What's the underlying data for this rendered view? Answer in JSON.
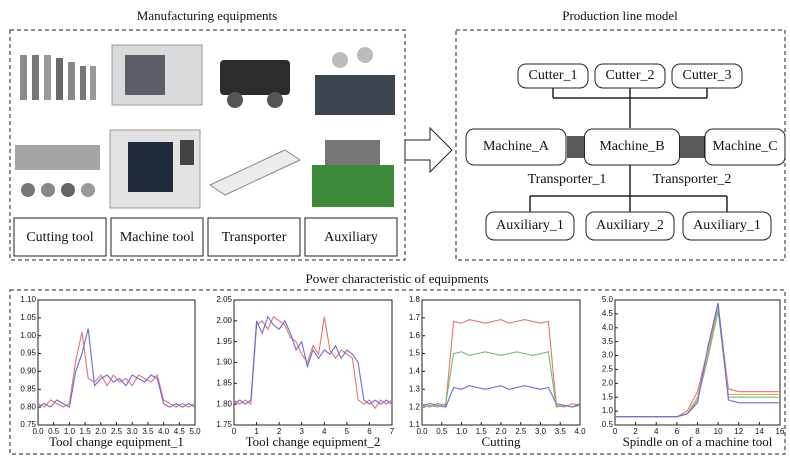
{
  "equipment_panel": {
    "title": "Manufacturing equipments",
    "labels": [
      "Cutting tool",
      "Machine tool",
      "Transporter",
      "Auxiliary"
    ]
  },
  "model_panel": {
    "title": "Production line model",
    "cutters": [
      "Cutter_1",
      "Cutter_2",
      "Cutter_3"
    ],
    "machines": [
      "Machine_A",
      "Machine_B",
      "Machine_C"
    ],
    "transporters": [
      "Transporter_1",
      "Transporter_2"
    ],
    "auxiliaries": [
      "Auxiliary_1",
      "Auxiliary_2",
      "Auxiliary_1"
    ]
  },
  "power_panel": {
    "title": "Power characteristic of equipments"
  },
  "chart_data": [
    {
      "type": "line",
      "title": "Tool change equipment_1",
      "x": [
        0,
        0.2,
        0.4,
        0.6,
        0.8,
        1,
        1.2,
        1.4,
        1.6,
        1.8,
        2,
        2.2,
        2.4,
        2.6,
        2.8,
        3,
        3.2,
        3.4,
        3.6,
        3.8,
        4,
        4.2,
        4.4,
        4.6,
        4.8,
        5
      ],
      "series": [
        {
          "color": "#e8736c",
          "values": [
            0.81,
            0.8,
            0.82,
            0.81,
            0.8,
            0.81,
            0.93,
            1.01,
            0.88,
            0.87,
            0.89,
            0.86,
            0.89,
            0.87,
            0.88,
            0.86,
            0.89,
            0.88,
            0.87,
            0.89,
            0.82,
            0.81,
            0.8,
            0.81,
            0.8,
            0.81
          ]
        },
        {
          "color": "#6b6be0",
          "values": [
            0.8,
            0.81,
            0.8,
            0.82,
            0.81,
            0.8,
            0.9,
            0.95,
            1.02,
            0.86,
            0.88,
            0.89,
            0.87,
            0.88,
            0.86,
            0.89,
            0.88,
            0.87,
            0.89,
            0.88,
            0.81,
            0.8,
            0.81,
            0.8,
            0.81,
            0.8
          ]
        }
      ],
      "xlim": [
        0,
        5
      ],
      "ylim": [
        0.75,
        1.1
      ],
      "xticks": [
        {
          "value": 0,
          "label": "0.0"
        },
        0.5,
        {
          "value": 1,
          "label": "1.0"
        },
        1.5,
        {
          "value": 2,
          "label": "2.0"
        },
        2.5,
        {
          "value": 3,
          "label": "3.0"
        },
        3.5,
        {
          "value": 4,
          "label": "4.0"
        },
        4.5,
        {
          "value": 5,
          "label": "5.0"
        }
      ],
      "yticks": [
        0.75,
        {
          "value": 0.8,
          "label": "0.80"
        },
        0.85,
        {
          "value": 0.9,
          "label": "0.90"
        },
        0.95,
        {
          "value": 1,
          "label": "1.00"
        },
        1.05,
        {
          "value": 1.1,
          "label": "1.10"
        }
      ]
    },
    {
      "type": "line",
      "title": "Tool change equipment_2",
      "x": [
        0,
        0.25,
        0.5,
        0.75,
        1,
        1.25,
        1.5,
        1.75,
        2,
        2.25,
        2.5,
        2.75,
        3,
        3.25,
        3.5,
        3.75,
        4,
        4.25,
        4.5,
        4.75,
        5,
        5.25,
        5.5,
        5.75,
        6,
        6.25,
        6.5,
        6.75,
        7
      ],
      "series": [
        {
          "color": "#e8736c",
          "values": [
            1.81,
            1.8,
            1.81,
            1.8,
            1.99,
            2.0,
            1.98,
            2.01,
            2.0,
            1.99,
            1.96,
            1.95,
            1.92,
            1.9,
            1.94,
            1.92,
            2.01,
            1.93,
            1.91,
            1.93,
            1.92,
            1.91,
            1.81,
            1.8,
            1.81,
            1.79,
            1.81,
            1.8,
            1.81
          ]
        },
        {
          "color": "#6b6be0",
          "values": [
            1.8,
            1.81,
            1.8,
            1.81,
            2.0,
            1.97,
            2.01,
            1.99,
            1.98,
            2.0,
            1.97,
            1.93,
            1.95,
            1.89,
            1.93,
            1.91,
            1.93,
            1.92,
            1.94,
            1.91,
            1.93,
            1.92,
            1.9,
            1.81,
            1.8,
            1.81,
            1.8,
            1.81,
            1.8
          ]
        }
      ],
      "xlim": [
        0,
        7
      ],
      "ylim": [
        1.75,
        2.05
      ],
      "xticks": [
        0,
        1,
        2,
        3,
        4,
        5,
        6,
        7
      ],
      "yticks": [
        1.75,
        {
          "value": 1.8,
          "label": "1.80"
        },
        1.85,
        {
          "value": 1.9,
          "label": "1.90"
        },
        1.95,
        {
          "value": 2,
          "label": "2.00"
        },
        2.05
      ]
    },
    {
      "type": "line",
      "title": "Cutting",
      "x": [
        0,
        0.2,
        0.4,
        0.6,
        0.8,
        1,
        1.2,
        1.4,
        1.6,
        1.8,
        2,
        2.2,
        2.4,
        2.6,
        2.8,
        3,
        3.2,
        3.4,
        3.6,
        3.8,
        4
      ],
      "series": [
        {
          "color": "#e8736c",
          "values": [
            1.21,
            1.2,
            1.22,
            1.21,
            1.68,
            1.67,
            1.69,
            1.68,
            1.67,
            1.68,
            1.69,
            1.67,
            1.68,
            1.69,
            1.68,
            1.67,
            1.68,
            1.21,
            1.2,
            1.22,
            1.21
          ]
        },
        {
          "color": "#6cbf6c",
          "values": [
            1.2,
            1.21,
            1.2,
            1.22,
            1.5,
            1.51,
            1.49,
            1.5,
            1.51,
            1.5,
            1.49,
            1.5,
            1.51,
            1.5,
            1.49,
            1.5,
            1.51,
            1.2,
            1.21,
            1.2,
            1.21
          ]
        },
        {
          "color": "#6b6be0",
          "values": [
            1.21,
            1.22,
            1.21,
            1.2,
            1.31,
            1.3,
            1.32,
            1.31,
            1.3,
            1.31,
            1.32,
            1.3,
            1.31,
            1.32,
            1.31,
            1.3,
            1.31,
            1.22,
            1.21,
            1.2,
            1.22
          ]
        }
      ],
      "xlim": [
        0,
        4
      ],
      "ylim": [
        1.1,
        1.8
      ],
      "xticks": [
        {
          "value": 0,
          "label": "0.0"
        },
        0.5,
        {
          "value": 1,
          "label": "1.0"
        },
        1.5,
        {
          "value": 2,
          "label": "2.0"
        },
        2.5,
        {
          "value": 3,
          "label": "3.0"
        },
        3.5,
        {
          "value": 4,
          "label": "4.0"
        }
      ],
      "yticks": [
        1.1,
        1.2,
        1.3,
        1.4,
        1.5,
        1.6,
        1.7,
        1.8
      ]
    },
    {
      "type": "line",
      "title": "Spindle on of a machine tool",
      "x": [
        0,
        2,
        4,
        6,
        7,
        8,
        9,
        10,
        11,
        12,
        14,
        16
      ],
      "series": [
        {
          "color": "#e8736c",
          "values": [
            0.8,
            0.8,
            0.8,
            0.8,
            1.0,
            1.7,
            3.2,
            4.8,
            1.8,
            1.7,
            1.7,
            1.7
          ]
        },
        {
          "color": "#e8a64c",
          "values": [
            0.8,
            0.8,
            0.8,
            0.8,
            0.9,
            1.5,
            3.0,
            4.7,
            1.6,
            1.6,
            1.6,
            1.6
          ]
        },
        {
          "color": "#6cbf6c",
          "values": [
            0.8,
            0.8,
            0.8,
            0.8,
            0.9,
            1.4,
            2.9,
            4.6,
            1.5,
            1.5,
            1.5,
            1.5
          ]
        },
        {
          "color": "#6b6be0",
          "values": [
            0.8,
            0.8,
            0.8,
            0.8,
            0.9,
            1.3,
            3.3,
            4.9,
            1.4,
            1.3,
            1.3,
            1.3
          ]
        }
      ],
      "xlim": [
        0,
        16
      ],
      "ylim": [
        0.5,
        5
      ],
      "xticks": [
        0,
        2,
        4,
        6,
        8,
        10,
        12,
        14,
        16
      ],
      "yticks": [
        0.5,
        {
          "value": 1,
          "label": "1.0"
        },
        1.5,
        {
          "value": 2,
          "label": "2.0"
        },
        2.5,
        {
          "value": 3,
          "label": "3.0"
        },
        3.5,
        {
          "value": 4,
          "label": "4.0"
        },
        4.5,
        {
          "value": 5,
          "label": "5.0"
        }
      ]
    }
  ]
}
